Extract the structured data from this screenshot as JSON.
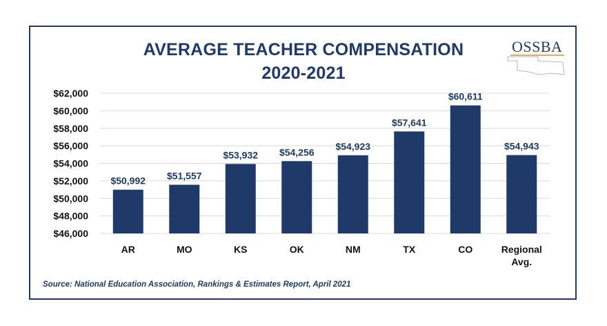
{
  "header": {
    "title_line1": "AVERAGE TEACHER COMPENSATION",
    "title_line2": "2020-2021"
  },
  "logo": {
    "text": "OSSBA"
  },
  "footer": {
    "source": "Source: National Education Association, Rankings & Estimates Report, April 2021"
  },
  "colors": {
    "bar": "#1f3a68",
    "title": "#1f3a68",
    "grid": "#d9d9d9",
    "logo_accent": "#e0902a"
  },
  "chart_data": {
    "type": "bar",
    "title": "AVERAGE TEACHER COMPENSATION 2020-2021",
    "xlabel": "",
    "ylabel": "",
    "categories": [
      "AR",
      "MO",
      "KS",
      "OK",
      "NM",
      "TX",
      "CO",
      "Regional Avg."
    ],
    "category_lines": [
      [
        "AR"
      ],
      [
        "MO"
      ],
      [
        "KS"
      ],
      [
        "OK"
      ],
      [
        "NM"
      ],
      [
        "TX"
      ],
      [
        "CO"
      ],
      [
        "Regional",
        "Avg."
      ]
    ],
    "values": [
      50992,
      51557,
      53932,
      54256,
      54923,
      57641,
      60611,
      54943
    ],
    "value_labels": [
      "$50,992",
      "$51,557",
      "$53,932",
      "$54,256",
      "$54,923",
      "$57,641",
      "$60,611",
      "$54,943"
    ],
    "ylim": [
      46000,
      62000
    ],
    "yticks": [
      46000,
      48000,
      50000,
      52000,
      54000,
      56000,
      58000,
      60000,
      62000
    ],
    "ytick_labels": [
      "$46,000",
      "$48,000",
      "$50,000",
      "$52,000",
      "$54,000",
      "$56,000",
      "$58,000",
      "$60,000",
      "$62,000"
    ],
    "grid": true
  }
}
